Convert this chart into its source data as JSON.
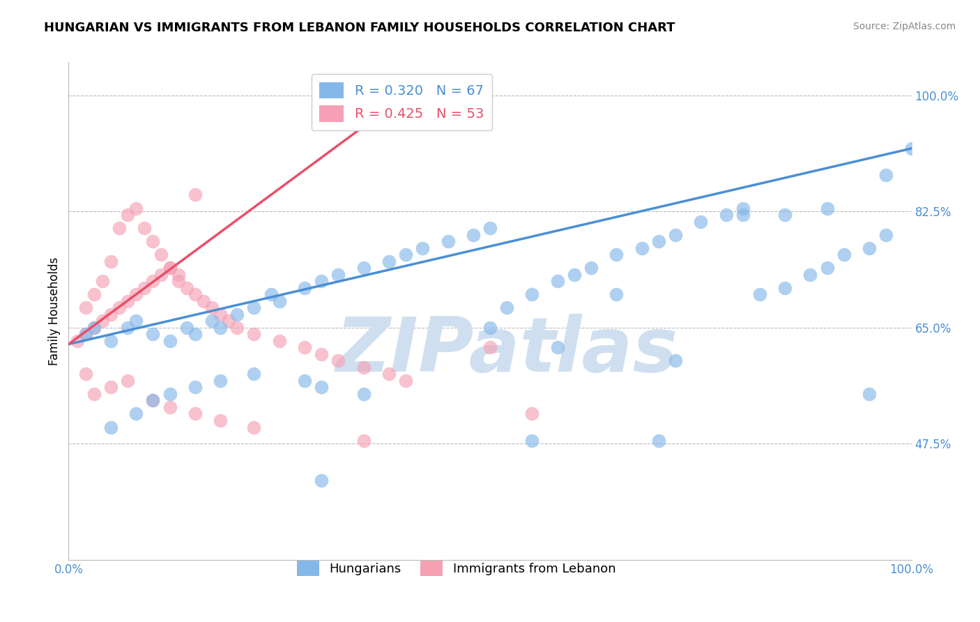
{
  "title": "HUNGARIAN VS IMMIGRANTS FROM LEBANON FAMILY HOUSEHOLDS CORRELATION CHART",
  "source": "Source: ZipAtlas.com",
  "ylabel": "Family Households",
  "ytick_vals": [
    47.5,
    65.0,
    82.5,
    100.0
  ],
  "ytick_labels": [
    "47.5%",
    "65.0%",
    "82.5%",
    "100.0%"
  ],
  "xlim": [
    0,
    100
  ],
  "ylim": [
    30,
    105
  ],
  "blue_R": 0.32,
  "blue_N": 67,
  "pink_R": 0.425,
  "pink_N": 53,
  "blue_color": "#85b8e8",
  "pink_color": "#f5a0b5",
  "blue_line_color": "#4a8fd4",
  "pink_line_color": "#e8506a",
  "watermark": "ZIPatlas",
  "watermark_color": "#d0dff0",
  "blue_line": [
    [
      0,
      100
    ],
    [
      62.5,
      92.0
    ]
  ],
  "pink_line": [
    [
      0,
      40
    ],
    [
      62.5,
      100.0
    ]
  ],
  "blue_x": [
    2,
    3,
    5,
    7,
    8,
    10,
    12,
    14,
    15,
    17,
    18,
    20,
    22,
    24,
    25,
    28,
    30,
    32,
    35,
    38,
    40,
    42,
    45,
    48,
    50,
    52,
    55,
    58,
    60,
    62,
    65,
    68,
    70,
    72,
    75,
    78,
    80,
    82,
    85,
    88,
    90,
    92,
    95,
    97,
    100,
    5,
    8,
    10,
    12,
    15,
    18,
    22,
    28,
    30,
    35,
    50,
    58,
    65,
    72,
    80,
    85,
    90,
    95,
    55,
    30,
    70,
    97
  ],
  "blue_y": [
    64,
    65,
    63,
    65,
    66,
    64,
    63,
    65,
    64,
    66,
    65,
    67,
    68,
    70,
    69,
    71,
    72,
    73,
    74,
    75,
    76,
    77,
    78,
    79,
    80,
    68,
    70,
    72,
    73,
    74,
    76,
    77,
    78,
    79,
    81,
    82,
    83,
    70,
    71,
    73,
    74,
    76,
    77,
    79,
    92,
    50,
    52,
    54,
    55,
    56,
    57,
    58,
    57,
    56,
    55,
    65,
    62,
    70,
    60,
    82,
    82,
    83,
    55,
    48,
    42,
    48,
    88
  ],
  "pink_x": [
    1,
    2,
    2,
    3,
    3,
    4,
    4,
    5,
    5,
    6,
    6,
    7,
    7,
    8,
    8,
    9,
    9,
    10,
    10,
    11,
    11,
    12,
    12,
    13,
    13,
    14,
    15,
    15,
    16,
    17,
    18,
    19,
    20,
    22,
    25,
    28,
    30,
    32,
    35,
    38,
    40,
    2,
    3,
    5,
    7,
    10,
    12,
    15,
    18,
    22,
    50,
    55,
    35
  ],
  "pink_y": [
    63,
    64,
    68,
    65,
    70,
    66,
    72,
    67,
    75,
    68,
    80,
    69,
    82,
    70,
    83,
    71,
    80,
    72,
    78,
    73,
    76,
    74,
    74,
    73,
    72,
    71,
    70,
    85,
    69,
    68,
    67,
    66,
    65,
    64,
    63,
    62,
    61,
    60,
    59,
    58,
    57,
    58,
    55,
    56,
    57,
    54,
    53,
    52,
    51,
    50,
    62,
    52,
    48
  ]
}
